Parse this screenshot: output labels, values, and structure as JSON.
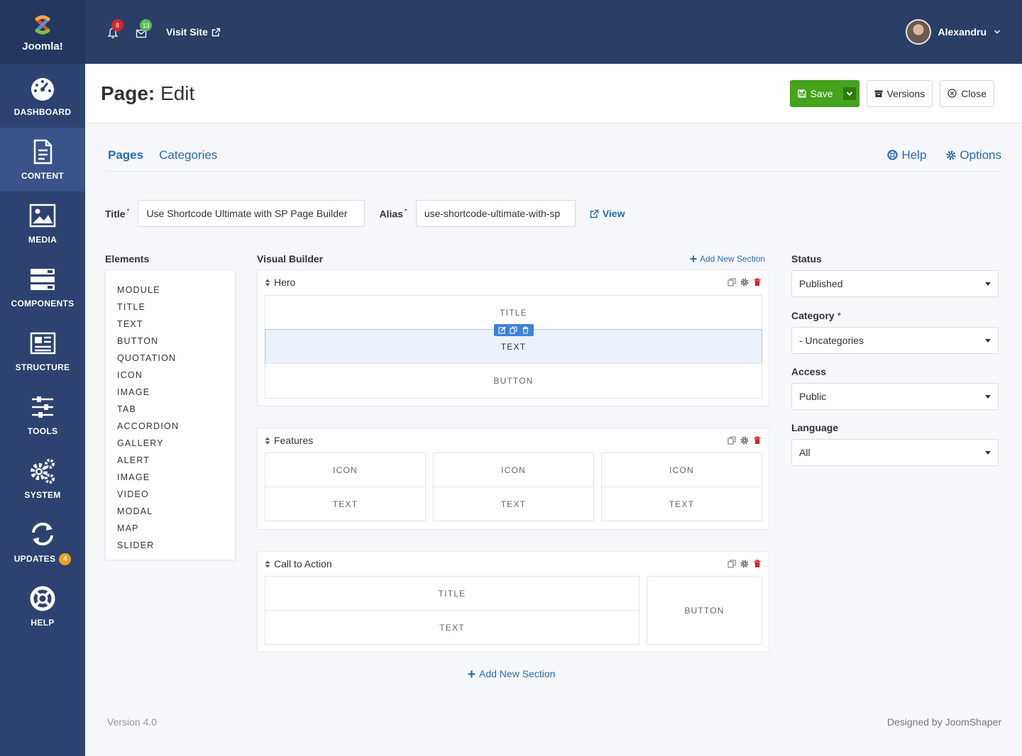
{
  "brand": {
    "name": "Joomla!"
  },
  "sidebar": {
    "items": [
      {
        "label": "DASHBOARD",
        "icon": "dashboard-icon"
      },
      {
        "label": "CONTENT",
        "icon": "document-icon"
      },
      {
        "label": "MEDIA",
        "icon": "image-icon"
      },
      {
        "label": "COMPONENTS",
        "icon": "components-icon"
      },
      {
        "label": "STRUCTURE",
        "icon": "newspaper-icon"
      },
      {
        "label": "TOOLS",
        "icon": "sliders-icon"
      },
      {
        "label": "SYSTEM",
        "icon": "gears-icon"
      },
      {
        "label": "UPDATES",
        "icon": "refresh-icon",
        "badge": "4"
      },
      {
        "label": "HELP",
        "icon": "lifebuoy-icon"
      }
    ],
    "active": "CONTENT"
  },
  "topbar": {
    "notifications_count": "8",
    "messages_count": "13",
    "visit_site": "Visit Site",
    "username": "Alexandru"
  },
  "header": {
    "title_bold": "Page:",
    "title_rest": " Edit",
    "save_label": "Save",
    "versions_label": "Versions",
    "close_label": "Close"
  },
  "tabs": {
    "pages": "Pages",
    "categories": "Categories",
    "help": "Help",
    "options": "Options"
  },
  "form": {
    "title_label": "Title",
    "title_value": "Use Shortcode Ultimate with SP Page Builder",
    "alias_label": "Alias",
    "alias_value": "use-shortcode-ultimate-with-sp",
    "view_label": "View",
    "required_mark": "*"
  },
  "elements": {
    "heading": "Elements",
    "items": [
      "MODULE",
      "TITLE",
      "TEXT",
      "BUTTON",
      "QUOTATION",
      "ICON",
      "IMAGE",
      "TAB",
      "ACCORDION",
      "GALLERY",
      "ALERT",
      "IMAGE",
      "VIDEO",
      "MODAL",
      "MAP",
      "SLIDER"
    ]
  },
  "builder": {
    "heading": "Visual Builder",
    "add_section": "Add New Section",
    "sections": [
      {
        "name": "Hero",
        "cells": [
          "TITLE",
          "TEXT",
          "BUTTON"
        ]
      },
      {
        "name": "Features",
        "cells": [
          "ICON",
          "TEXT",
          "ICON",
          "TEXT",
          "ICON",
          "TEXT"
        ]
      },
      {
        "name": "Call to Action",
        "cells": [
          "TITLE",
          "TEXT",
          "BUTTON"
        ]
      }
    ]
  },
  "settings": {
    "status_label": "Status",
    "status_value": "Published",
    "category_label": "Category",
    "category_value": "- Uncategories",
    "access_label": "Access",
    "access_value": "Public",
    "language_label": "Language",
    "language_value": "All"
  },
  "footer": {
    "version": "Version 4.0",
    "credit": "Designed by JoomShaper"
  },
  "colors": {
    "sidebar": "#2d4270",
    "topbar": "#2b3e66",
    "accent": "#2a6bb0",
    "save": "#46a31c",
    "selected_cell": "#eaf1fb"
  }
}
